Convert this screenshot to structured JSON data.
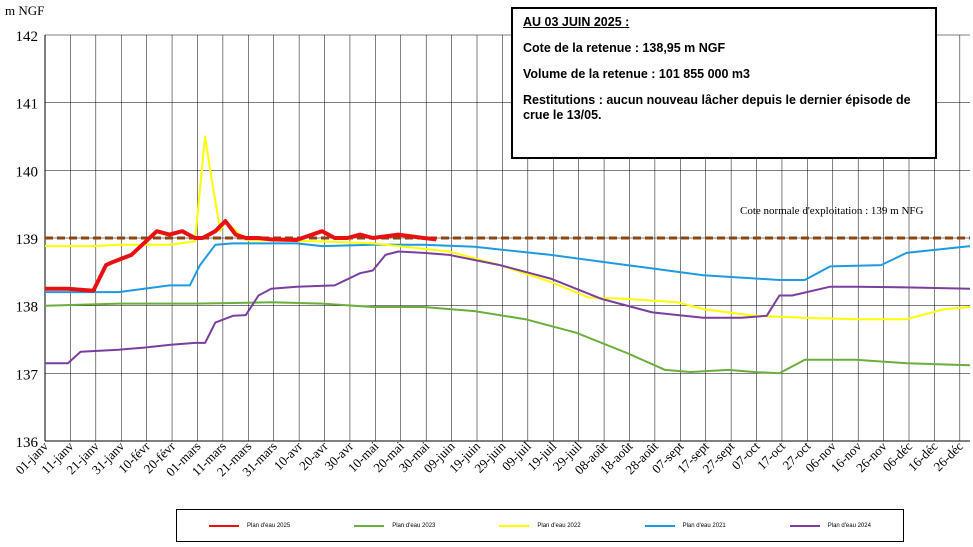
{
  "chart_data": {
    "type": "line",
    "ylabel": "m NGF",
    "ylim": [
      136,
      142
    ],
    "y_ticks": [
      "136",
      "137",
      "138",
      "139",
      "140",
      "141",
      "142"
    ],
    "x_tick_labels": [
      "01-janv",
      "11-janv",
      "21-janv",
      "31-janv",
      "10-févr",
      "20-févr",
      "01-mars",
      "11-mars",
      "21-mars",
      "31-mars",
      "10-avr",
      "20-avr",
      "30-avr",
      "10-mai",
      "20-mai",
      "30-mai",
      "09-juin",
      "19-juin",
      "29-juin",
      "09-juil",
      "19-juil",
      "29-juil",
      "08-août",
      "18-août",
      "28-août",
      "07-sept",
      "17-sept",
      "27-sept",
      "07-oct",
      "17-oct",
      "27-oct",
      "06-nov",
      "16-nov",
      "26-nov",
      "06-déc",
      "16-déc",
      "26-déc"
    ],
    "x_unit": "day_of_year",
    "xlim": [
      1,
      365
    ],
    "grid": true,
    "reference_line": {
      "value": 139.0,
      "label": "Cote normale d'exploitation : 139 m NFG",
      "color": "#8B4513"
    },
    "series": [
      {
        "name": "Plan d'eau 2021",
        "color": "#1E9BE0",
        "x": [
          1,
          20,
          30,
          40,
          50,
          58,
          62,
          68,
          75,
          100,
          110,
          130,
          150,
          170,
          200,
          230,
          260,
          290,
          300,
          310,
          330,
          340,
          365
        ],
        "y": [
          138.2,
          138.2,
          138.2,
          138.25,
          138.3,
          138.3,
          138.6,
          138.9,
          138.92,
          138.92,
          138.88,
          138.9,
          138.9,
          138.87,
          138.75,
          138.6,
          138.45,
          138.38,
          138.38,
          138.58,
          138.6,
          138.78,
          138.88
        ]
      },
      {
        "name": "Plan d'eau 2022",
        "color": "#FFFF00",
        "x": [
          1,
          20,
          30,
          50,
          60,
          64,
          66,
          70,
          72,
          80,
          110,
          130,
          160,
          180,
          200,
          215,
          230,
          250,
          260,
          280,
          300,
          320,
          340,
          355,
          365
        ],
        "y": [
          138.88,
          138.88,
          138.9,
          138.9,
          138.95,
          140.5,
          140.0,
          139.1,
          139.25,
          138.97,
          138.95,
          138.92,
          138.8,
          138.6,
          138.35,
          138.12,
          138.1,
          138.05,
          137.95,
          137.85,
          137.82,
          137.8,
          137.8,
          137.95,
          137.98
        ]
      },
      {
        "name": "Plan d'eau 2023",
        "color": "#6AAF3D",
        "x": [
          1,
          30,
          60,
          90,
          110,
          130,
          150,
          170,
          190,
          210,
          230,
          245,
          255,
          270,
          280,
          290,
          300,
          320,
          340,
          365
        ],
        "y": [
          138.0,
          138.03,
          138.03,
          138.05,
          138.03,
          137.98,
          137.98,
          137.92,
          137.8,
          137.6,
          137.3,
          137.05,
          137.02,
          137.05,
          137.02,
          137.0,
          137.2,
          137.2,
          137.15,
          137.12
        ]
      },
      {
        "name": "Plan d'eau 2024",
        "color": "#7B3FA0",
        "x": [
          1,
          10,
          15,
          30,
          40,
          50,
          60,
          64,
          68,
          75,
          80,
          85,
          90,
          100,
          115,
          125,
          130,
          135,
          140,
          150,
          160,
          180,
          200,
          220,
          240,
          260,
          275,
          285,
          290,
          295,
          310,
          320,
          340,
          365
        ],
        "y": [
          137.15,
          137.15,
          137.32,
          137.35,
          137.38,
          137.42,
          137.45,
          137.45,
          137.75,
          137.85,
          137.86,
          138.15,
          138.25,
          138.28,
          138.3,
          138.48,
          138.52,
          138.75,
          138.8,
          138.78,
          138.75,
          138.6,
          138.4,
          138.1,
          137.9,
          137.82,
          137.82,
          137.85,
          138.15,
          138.15,
          138.28,
          138.28,
          138.27,
          138.25
        ]
      },
      {
        "name": "Plan d'eau 2025",
        "color": "#E81010",
        "x": [
          1,
          10,
          20,
          25,
          28,
          35,
          45,
          50,
          55,
          60,
          63,
          68,
          72,
          76,
          80,
          85,
          90,
          100,
          110,
          115,
          120,
          125,
          130,
          140,
          150,
          155
        ],
        "y": [
          138.25,
          138.25,
          138.22,
          138.6,
          138.65,
          138.75,
          139.1,
          139.05,
          139.1,
          139.0,
          139.0,
          139.1,
          139.25,
          139.05,
          139.0,
          139.0,
          138.98,
          138.97,
          139.1,
          139.0,
          139.0,
          139.05,
          139.0,
          139.05,
          139.0,
          138.98
        ]
      }
    ]
  },
  "infobox": {
    "title": "AU 03 JUIN 2025 :",
    "cote": "Cote de la retenue : 138,95 m NGF",
    "volume": "Volume de la retenue : 101 855 000 m3",
    "restitutions": "Restitutions : aucun nouveau lâcher depuis le dernier épisode de crue le 13/05."
  },
  "legend": [
    {
      "label": "Plan d'eau 2025",
      "color": "#E81010"
    },
    {
      "label": "Plan d'eau 2023",
      "color": "#6AAF3D"
    },
    {
      "label": "Plan d'eau 2022",
      "color": "#FFFF00"
    },
    {
      "label": "Plan d'eau 2021",
      "color": "#1E9BE0"
    },
    {
      "label": "Plan d'eau 2024",
      "color": "#7B3FA0"
    }
  ]
}
